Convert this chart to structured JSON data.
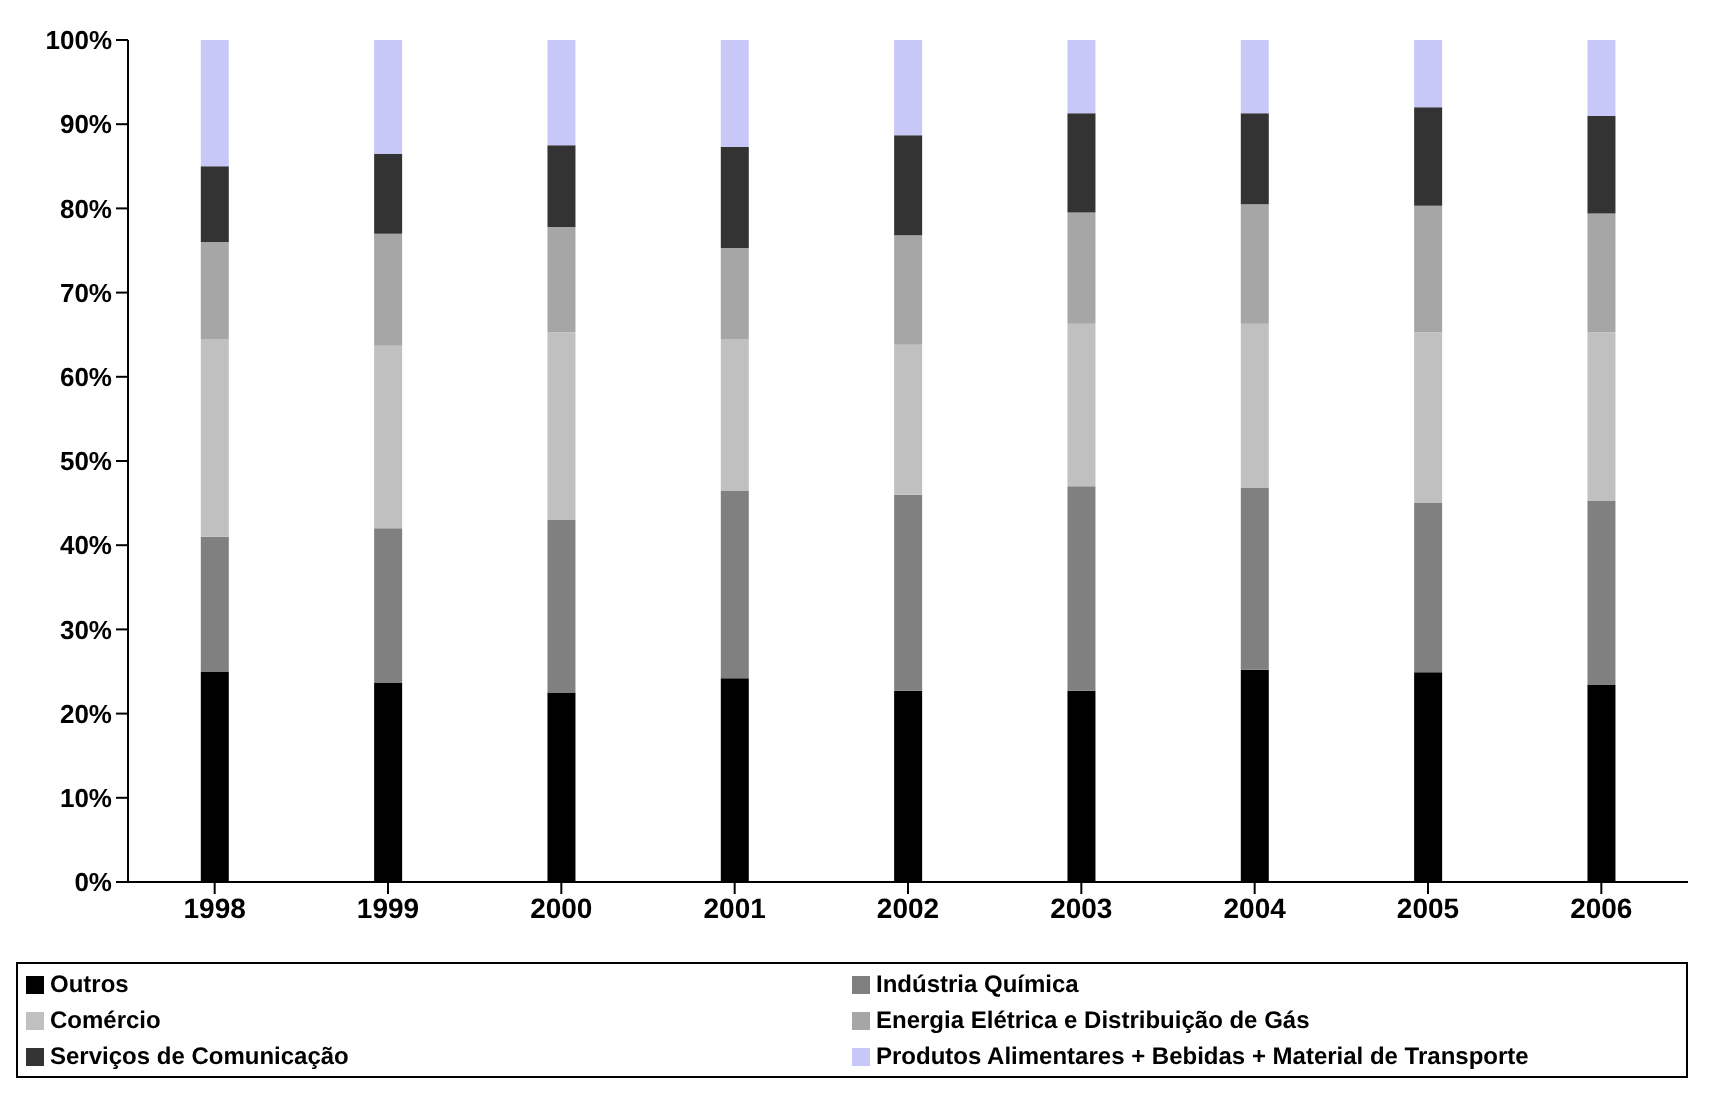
{
  "chart_data": {
    "type": "bar",
    "stacked": true,
    "categories": [
      "1998",
      "1999",
      "2000",
      "2001",
      "2002",
      "2003",
      "2004",
      "2005",
      "2006"
    ],
    "series": [
      {
        "name": "Outros",
        "color": "#000000",
        "values": [
          25,
          23.7,
          22.5,
          24.2,
          22.7,
          22.7,
          25.2,
          24.9,
          23.4
        ]
      },
      {
        "name": "Indústria Química",
        "color": "#808080",
        "values": [
          16,
          18.3,
          20.5,
          22.3,
          23.3,
          24.3,
          21.6,
          20.1,
          21.9
        ]
      },
      {
        "name": "Comércio",
        "color": "#c0c0c0",
        "values": [
          23.5,
          21.7,
          22.3,
          18,
          17.8,
          19.3,
          19.5,
          20.3,
          20
        ]
      },
      {
        "name": "Energia Elétrica e Distribuição de Gás",
        "color": "#a6a6a6",
        "values": [
          11.5,
          13.3,
          12.5,
          10.8,
          13,
          13.2,
          14.2,
          15,
          14.1
        ]
      },
      {
        "name": "Serviços de Comunicação",
        "color": "#333333",
        "values": [
          9,
          9.5,
          9.7,
          12,
          11.9,
          11.8,
          10.8,
          11.7,
          11.6
        ]
      },
      {
        "name": "Produtos Alimentares + Bebidas + Material de Transporte",
        "color": "#c8c8f8",
        "values": [
          15,
          13.5,
          12.5,
          12.7,
          11.3,
          8.7,
          8.7,
          8,
          9
        ]
      }
    ],
    "ylim": [
      0,
      100
    ],
    "yticks": [
      {
        "value": 0,
        "label": "0%"
      },
      {
        "value": 10,
        "label": "10%"
      },
      {
        "value": 20,
        "label": "20%"
      },
      {
        "value": 30,
        "label": "30%"
      },
      {
        "value": 40,
        "label": "40%"
      },
      {
        "value": 50,
        "label": "50%"
      },
      {
        "value": 60,
        "label": "60%"
      },
      {
        "value": 70,
        "label": "70%"
      },
      {
        "value": 80,
        "label": "80%"
      },
      {
        "value": 90,
        "label": "90%"
      },
      {
        "value": 100,
        "label": "100%"
      }
    ],
    "grid": false,
    "legend": "bottom"
  }
}
